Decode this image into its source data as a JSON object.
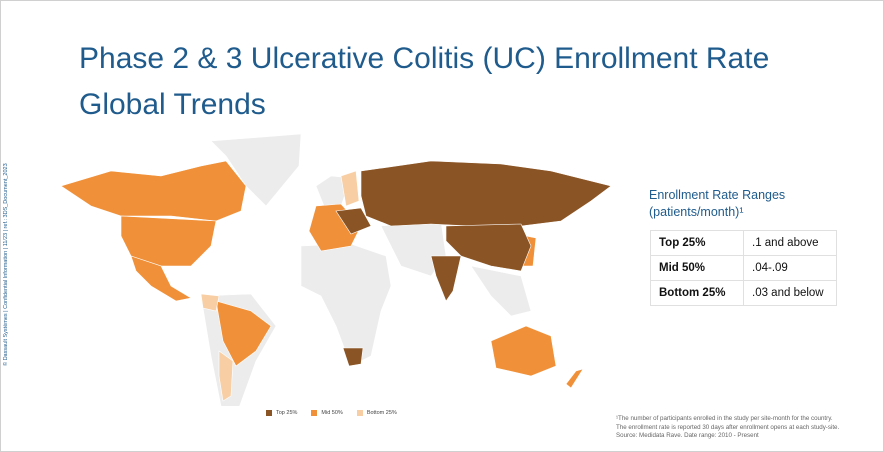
{
  "header": {
    "title_lines": [
      "Phase 2 & 3 Ulcerative Colitis (UC) Enrollment Rate",
      "Global Trends"
    ]
  },
  "sidebar": "© Dassault Systèmes | Confidential Information | 11/23 | ref.: 3DS_Document_2023",
  "legend": [
    "Top 25%",
    "Mid 50%",
    "Bottom 25%"
  ],
  "table": {
    "title_lines": [
      "Enrollment Rate Ranges",
      "(patients/month)¹"
    ],
    "rows": [
      [
        "Top 25%",
        ".1 and above"
      ],
      [
        "Mid 50%",
        ".04-.09"
      ],
      [
        "Bottom 25%",
        ".03 and below"
      ]
    ]
  },
  "footnote": [
    "¹The number of participants enrolled in the study per site-month for the country.",
    "The enrollment rate is reported 30 days after enrollment opens at each study-site.",
    "Source: Medidata Rave. Date range: 2010 - Present"
  ]
}
